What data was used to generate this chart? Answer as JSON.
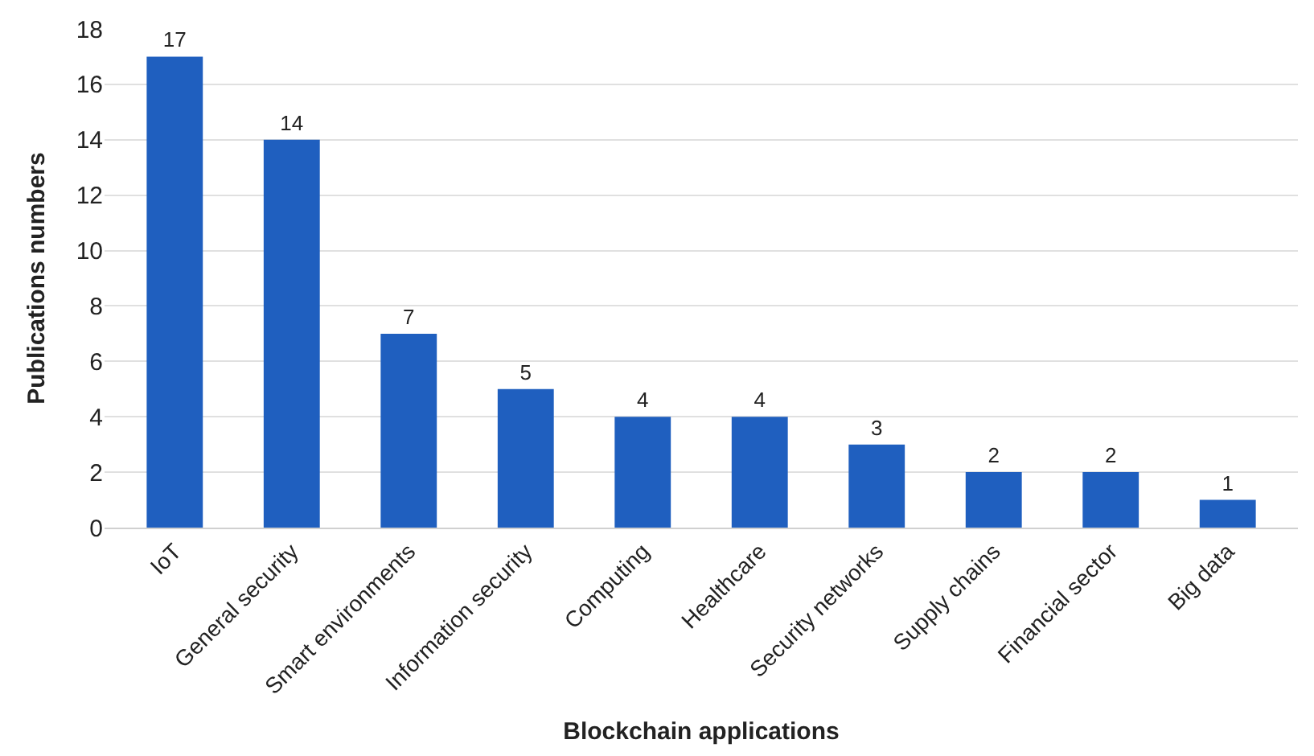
{
  "chart_data": {
    "type": "bar",
    "xlabel": "Blockchain applications",
    "ylabel": "Publications numbers",
    "categories": [
      "IoT",
      "General security",
      "Smart environments",
      "Information security",
      "Computing",
      "Healthcare",
      "Security networks",
      "Supply chains",
      "Financial sector",
      "Big data"
    ],
    "values": [
      17,
      14,
      7,
      5,
      4,
      4,
      3,
      2,
      2,
      1
    ],
    "color": "#1f5fbf",
    "ylim": [
      0,
      18
    ],
    "yticks": [
      0,
      2,
      4,
      6,
      8,
      10,
      12,
      14,
      16,
      18
    ],
    "grid": "y",
    "data_labels": true
  }
}
